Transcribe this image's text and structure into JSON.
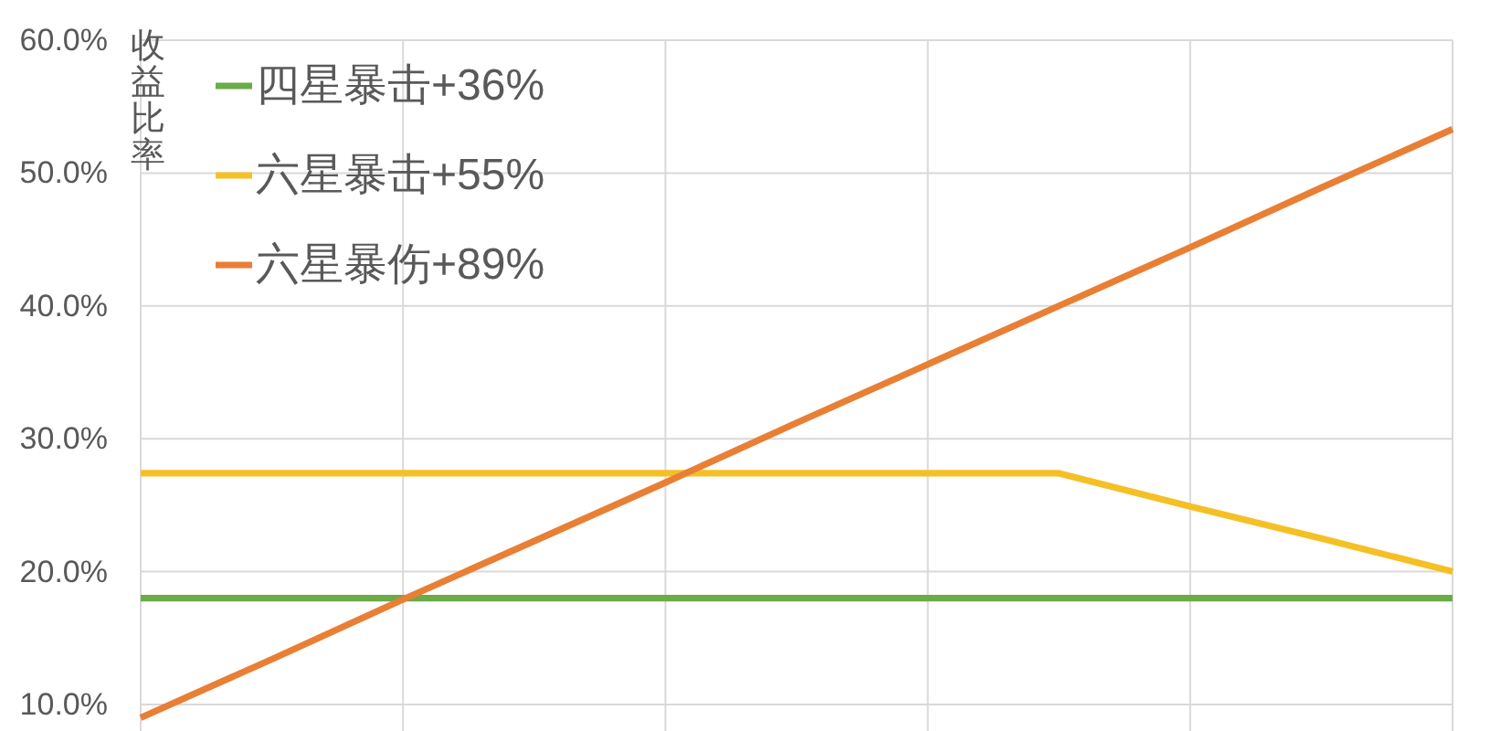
{
  "chart_data": {
    "type": "line",
    "ylabel": "收益比率",
    "categories": [
      null,
      null,
      null,
      null,
      null,
      null,
      null,
      null,
      null,
      null,
      null
    ],
    "series": [
      {
        "name": "四星暴击+36%",
        "color": "#6aac46",
        "values": [
          18.0,
          18.0,
          18.0,
          18.0,
          18.0,
          18.0,
          18.0,
          18.0,
          18.0,
          18.0,
          18.0
        ]
      },
      {
        "name": "六星暴击+55%",
        "color": "#f5c026",
        "values": [
          27.4,
          27.4,
          27.4,
          27.4,
          27.4,
          27.4,
          27.4,
          27.4,
          24.9,
          22.5,
          20.0
        ]
      },
      {
        "name": "六星暴伤+89%",
        "color": "#e97f35",
        "values": [
          9.0,
          13.4,
          17.9,
          22.3,
          26.7,
          31.2,
          35.6,
          40.0,
          44.4,
          48.9,
          53.3
        ]
      }
    ],
    "ylim": [
      8,
      60
    ],
    "yticks": [
      {
        "value": 10,
        "label": "10.0%"
      },
      {
        "value": 20,
        "label": "20.0%"
      },
      {
        "value": 30,
        "label": "30.0%"
      },
      {
        "value": 40,
        "label": "40.0%"
      },
      {
        "value": 50,
        "label": "50.0%"
      },
      {
        "value": 60,
        "label": "60.0%"
      }
    ],
    "grid": true,
    "legend": "top left"
  }
}
